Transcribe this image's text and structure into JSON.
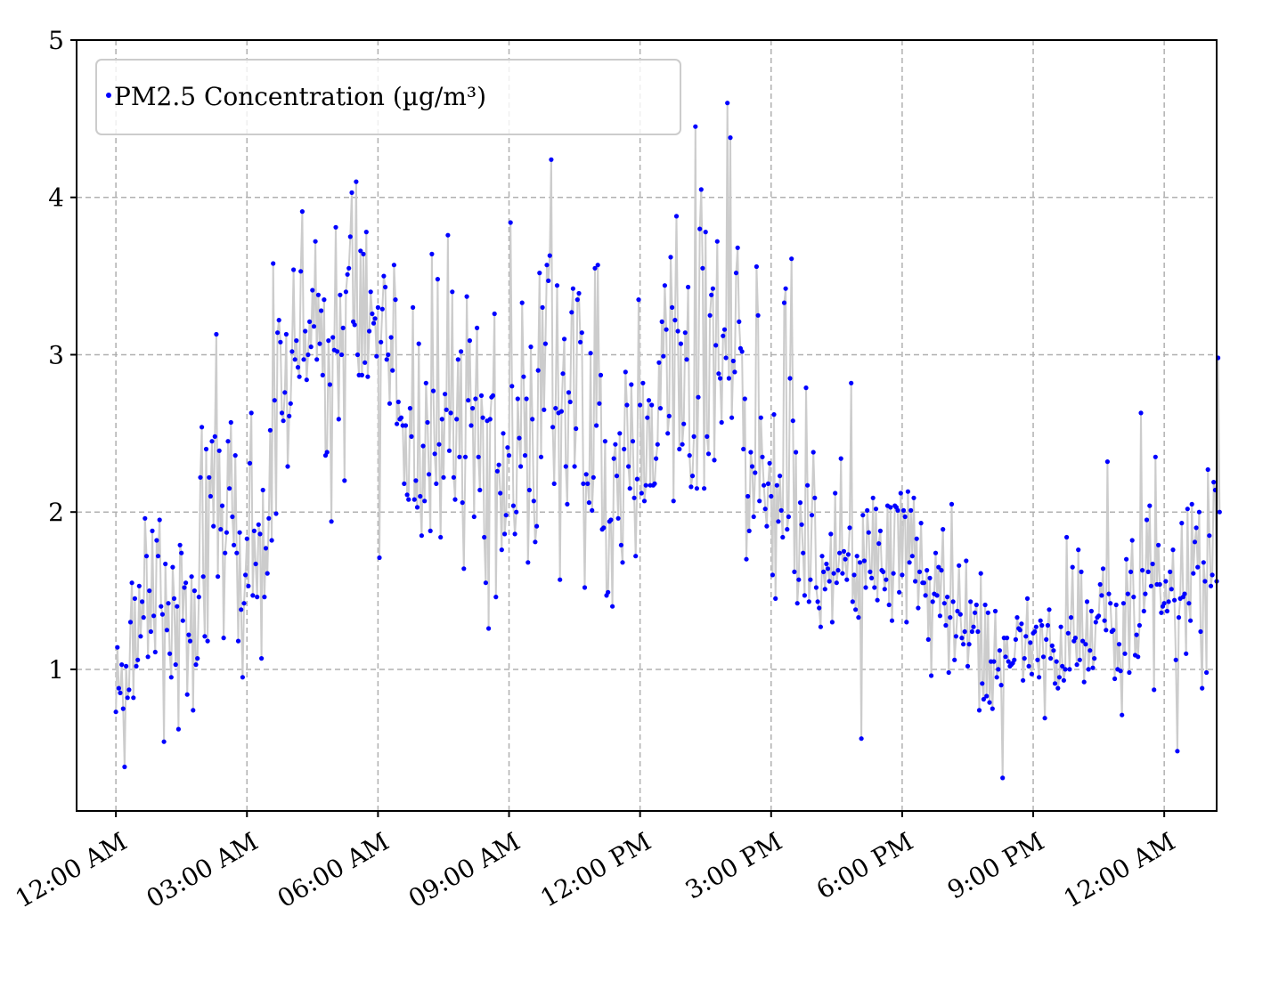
{
  "chart_data": {
    "type": "line",
    "title": "",
    "xlabel": "",
    "ylabel": "",
    "x_start": "12:00 AM",
    "x_end": "12:00 AM",
    "x_step_minutes": 2,
    "xlim_hours": [
      -0.9,
      25.2
    ],
    "ylim": [
      0.1,
      5.0
    ],
    "grid": true,
    "legend": {
      "placement": "top-left",
      "entries": [
        "PM2.5 Concentration (µg/m³)"
      ]
    },
    "x_ticks": [
      {
        "hour": 0,
        "label": "12:00 AM"
      },
      {
        "hour": 3,
        "label": "03:00 AM"
      },
      {
        "hour": 6,
        "label": "06:00 AM"
      },
      {
        "hour": 9,
        "label": "09:00 AM"
      },
      {
        "hour": 12,
        "label": "12:00 PM"
      },
      {
        "hour": 15,
        "label": "3:00 PM"
      },
      {
        "hour": 18,
        "label": "6:00 PM"
      },
      {
        "hour": 21,
        "label": "9:00 PM"
      },
      {
        "hour": 24,
        "label": "12:00 AM"
      }
    ],
    "y_ticks": [
      1,
      2,
      3,
      4,
      5
    ],
    "series": [
      {
        "name": "PM2.5 Concentration (µg/m³)",
        "line_color": "#cccccc",
        "marker_color": "#0000ff",
        "values": [
          0.73,
          1.14,
          0.88,
          0.85,
          1.03,
          0.75,
          0.38,
          1.02,
          0.82,
          0.87,
          1.3,
          1.55,
          0.82,
          1.45,
          1.02,
          1.06,
          1.53,
          1.21,
          1.43,
          1.33,
          1.96,
          1.72,
          1.08,
          1.5,
          1.24,
          1.88,
          1.34,
          1.11,
          1.82,
          1.72,
          1.95,
          1.4,
          1.35,
          0.54,
          1.67,
          1.25,
          1.42,
          1.1,
          0.95,
          1.65,
          1.45,
          1.03,
          1.4,
          0.62,
          1.79,
          1.74,
          1.31,
          1.52,
          1.55,
          0.84,
          1.22,
          1.18,
          1.59,
          0.74,
          1.5,
          1.03,
          1.07,
          1.46,
          2.22,
          2.54,
          1.59,
          1.21,
          2.4,
          1.18,
          2.22,
          2.1,
          2.45,
          1.91,
          2.48,
          3.13,
          1.59,
          2.39,
          1.89,
          2.04,
          1.2,
          1.74,
          1.87,
          2.45,
          2.15,
          2.57,
          1.97,
          1.79,
          2.36,
          1.74,
          1.18,
          1.87,
          1.38,
          0.95,
          1.42,
          1.6,
          1.83,
          1.53,
          2.31,
          2.63,
          1.47,
          1.88,
          1.67,
          1.46,
          1.92,
          1.86,
          1.07,
          2.14,
          1.46,
          1.77,
          1.61,
          1.96,
          2.52,
          1.82,
          3.58,
          2.71,
          1.99,
          3.14,
          3.22,
          3.08,
          2.63,
          2.58,
          2.76,
          3.13,
          2.29,
          2.61,
          2.69,
          3.02,
          3.54,
          2.97,
          3.09,
          2.92,
          2.86,
          3.53,
          3.91,
          2.97,
          3.15,
          2.84,
          3.0,
          3.21,
          3.05,
          3.41,
          3.18,
          3.72,
          2.97,
          3.38,
          3.07,
          3.28,
          2.87,
          3.35,
          2.36,
          2.38,
          3.09,
          2.81,
          1.94,
          3.11,
          3.03,
          3.81,
          3.02,
          2.59,
          3.38,
          3.0,
          3.17,
          2.2,
          3.4,
          3.51,
          3.55,
          3.75,
          4.03,
          3.21,
          3.19,
          4.1,
          3.0,
          2.87,
          3.66,
          2.87,
          3.64,
          2.95,
          3.78,
          2.86,
          3.15,
          3.4,
          3.26,
          3.2,
          3.23,
          2.99,
          3.3,
          1.71,
          3.08,
          3.29,
          3.5,
          3.43,
          2.97,
          3.0,
          2.69,
          3.11,
          2.9,
          3.57,
          3.35,
          2.56,
          2.7,
          2.59,
          2.6,
          2.55,
          2.18,
          2.55,
          2.11,
          2.08,
          2.66,
          2.48,
          3.3,
          2.08,
          2.2,
          2.03,
          3.07,
          2.1,
          1.85,
          2.42,
          2.07,
          2.82,
          2.57,
          2.24,
          1.88,
          3.64,
          2.77,
          2.37,
          2.18,
          3.48,
          2.43,
          1.84,
          2.59,
          2.22,
          2.75,
          2.65,
          3.76,
          2.39,
          2.63,
          3.4,
          2.22,
          2.08,
          2.59,
          2.97,
          2.35,
          3.02,
          2.06,
          1.64,
          2.35,
          3.37,
          2.71,
          3.09,
          2.55,
          2.66,
          1.97,
          2.72,
          3.17,
          2.35,
          2.14,
          2.74,
          2.6,
          1.84,
          1.55,
          2.58,
          1.26,
          2.59,
          2.73,
          2.74,
          3.26,
          1.46,
          2.26,
          2.3,
          2.12,
          1.76,
          2.5,
          1.86,
          1.98,
          2.41,
          2.36,
          3.84,
          2.8,
          2.04,
          1.86,
          2.0,
          2.72,
          2.47,
          2.29,
          3.33,
          2.86,
          2.36,
          2.72,
          1.68,
          2.14,
          3.05,
          2.59,
          2.07,
          1.81,
          1.91,
          2.9,
          3.52,
          2.35,
          3.3,
          2.65,
          3.07,
          3.57,
          3.47,
          3.63,
          4.24,
          2.54,
          2.18,
          2.66,
          3.44,
          2.63,
          1.57,
          2.64,
          2.88,
          3.1,
          2.29,
          2.05,
          2.76,
          2.7,
          3.27,
          3.42,
          2.29,
          2.53,
          3.35,
          3.39,
          3.08,
          3.14,
          2.18,
          1.52,
          2.24,
          2.18,
          2.06,
          3.01,
          2.01,
          2.22,
          3.55,
          2.55,
          3.57,
          2.69,
          2.87,
          1.89,
          1.9,
          2.45,
          1.47,
          1.49,
          1.94,
          1.95,
          1.4,
          2.34,
          2.43,
          2.23,
          1.96,
          2.5,
          1.79,
          1.68,
          2.4,
          2.89,
          2.68,
          2.29,
          2.15,
          2.81,
          2.45,
          2.09,
          1.72,
          2.21,
          3.35,
          2.68,
          2.12,
          2.82,
          2.07,
          2.17,
          2.6,
          2.71,
          2.17,
          2.68,
          2.17,
          2.18,
          2.34,
          2.43,
          2.95,
          2.66,
          3.21,
          2.99,
          3.44,
          3.16,
          2.5,
          2.61,
          3.62,
          3.3,
          2.07,
          3.22,
          3.88,
          3.15,
          2.4,
          3.07,
          2.43,
          2.56,
          3.14,
          2.97,
          3.43,
          2.36,
          2.16,
          2.23,
          2.48,
          4.45,
          2.15,
          2.73,
          3.8,
          4.05,
          3.55,
          2.15,
          3.78,
          2.48,
          2.37,
          3.25,
          3.38,
          3.42,
          2.33,
          3.06,
          3.72,
          2.88,
          2.85,
          2.57,
          3.12,
          3.16,
          2.98,
          4.6,
          2.85,
          4.38,
          2.6,
          2.96,
          2.89,
          3.52,
          3.68,
          3.21,
          3.04,
          3.02,
          2.4,
          2.72,
          1.7,
          2.1,
          1.88,
          2.38,
          2.29,
          1.97,
          2.25,
          3.56,
          3.25,
          2.07,
          2.6,
          2.35,
          2.17,
          2.02,
          1.91,
          2.18,
          2.31,
          2.1,
          1.6,
          2.62,
          1.45,
          2.17,
          1.94,
          2.23,
          2.01,
          1.84,
          3.33,
          3.42,
          1.89,
          1.97,
          2.85,
          3.61,
          2.58,
          1.62,
          2.38,
          1.42,
          1.57,
          2.06,
          1.92,
          1.74,
          1.47,
          2.79,
          2.17,
          1.43,
          1.57,
          1.98,
          2.38,
          2.09,
          1.52,
          1.43,
          1.39,
          1.27,
          1.72,
          1.62,
          1.51,
          1.67,
          1.64,
          1.56,
          1.86,
          1.3,
          1.61,
          2.12,
          1.55,
          1.63,
          1.74,
          2.34,
          1.61,
          1.75,
          1.7,
          1.57,
          1.73,
          1.9,
          2.82,
          1.43,
          1.6,
          1.38,
          1.72,
          1.33,
          1.68,
          0.56,
          1.98,
          1.69,
          1.52,
          2.01,
          1.87,
          1.62,
          1.58,
          2.09,
          1.52,
          2.02,
          1.44,
          1.8,
          1.88,
          1.63,
          1.62,
          1.51,
          1.57,
          2.04,
          1.41,
          2.03,
          1.31,
          1.61,
          2.04,
          2.03,
          2.01,
          1.49,
          2.12,
          1.6,
          2.01,
          1.97,
          1.3,
          2.13,
          1.68,
          2.01,
          1.72,
          2.09,
          1.56,
          1.83,
          1.39,
          1.62,
          1.93,
          1.55,
          1.55,
          1.47,
          1.63,
          1.19,
          1.58,
          0.96,
          1.43,
          1.48,
          1.74,
          1.47,
          1.65,
          1.34,
          1.63,
          1.89,
          1.42,
          1.28,
          1.46,
          0.98,
          1.33,
          2.05,
          1.43,
          1.06,
          1.21,
          1.37,
          1.66,
          1.35,
          1.2,
          1.16,
          1.24,
          1.69,
          1.02,
          1.16,
          1.43,
          1.24,
          1.27,
          1.36,
          1.41,
          1.24,
          0.74,
          1.61,
          0.91,
          0.81,
          1.41,
          0.83,
          1.36,
          0.79,
          1.05,
          0.75,
          1.05,
          1.37,
          0.95,
          1.0,
          1.12,
          0.9,
          0.31,
          1.2,
          1.08,
          1.2,
          1.05,
          1.02,
          1.03,
          1.04,
          1.06,
          1.19,
          1.33,
          1.26,
          1.25,
          1.29,
          0.93,
          1.07,
          1.21,
          1.45,
          1.02,
          1.17,
          0.97,
          1.23,
          1.24,
          1.27,
          1.06,
          0.95,
          1.31,
          1.28,
          1.08,
          0.69,
          1.19,
          1.28,
          1.38,
          1.07,
          1.15,
          1.12,
          0.91,
          1.05,
          0.88,
          0.95,
          1.27,
          1.02,
          0.93,
          1.0,
          1.84,
          1.23,
          1.0,
          1.33,
          1.65,
          1.18,
          1.2,
          1.03,
          1.76,
          1.06,
          1.62,
          1.18,
          0.92,
          1.16,
          1.43,
          1.0,
          1.12,
          1.37,
          1.01,
          1.07,
          1.3,
          1.33,
          1.34,
          1.54,
          1.47,
          1.64,
          1.31,
          1.25,
          2.32,
          1.48,
          1.42,
          1.24,
          1.25,
          0.94,
          1.41,
          1.0,
          1.16,
          0.99,
          0.71,
          1.42,
          1.1,
          1.7,
          1.48,
          0.98,
          1.62,
          1.82,
          1.46,
          1.09,
          1.22,
          1.08,
          1.28,
          2.63,
          1.63,
          1.37,
          1.48,
          1.95,
          1.62,
          2.04,
          1.53,
          1.67,
          0.87,
          2.35,
          1.54,
          1.79,
          1.54,
          1.36,
          1.4,
          1.42,
          1.56,
          1.37,
          1.43,
          1.62,
          1.51,
          1.76,
          1.44,
          1.06,
          0.48,
          1.33,
          1.45,
          1.93,
          1.46,
          1.48,
          1.1,
          2.02,
          1.42,
          1.31,
          2.05,
          1.61,
          1.81,
          1.9,
          1.65,
          2.0,
          1.24,
          0.88,
          1.68,
          1.56,
          0.98,
          2.27,
          1.85,
          1.53,
          1.6,
          2.19,
          2.14,
          1.56,
          2.98,
          2.0
        ]
      }
    ]
  }
}
